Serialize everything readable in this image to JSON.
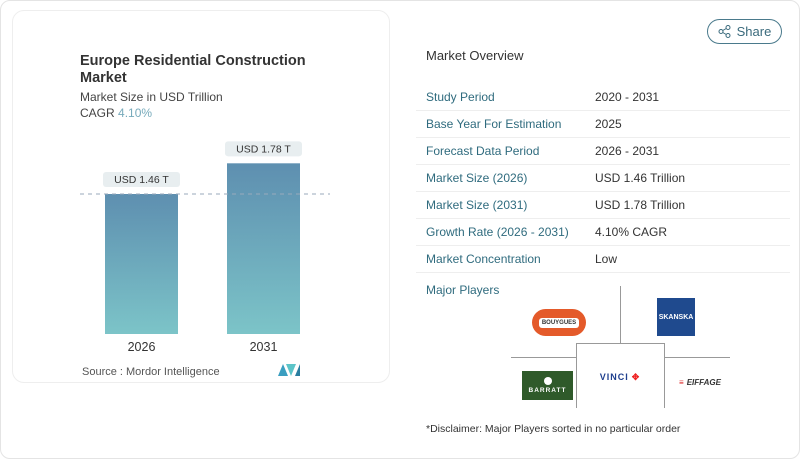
{
  "share_label": "Share",
  "chart_data": {
    "type": "bar",
    "title": "Europe Residential Construction Market",
    "subtitle": "Market Size in USD Trillion",
    "cagr_label": "CAGR",
    "cagr_value": "4.10%",
    "categories": [
      "2026",
      "2031"
    ],
    "values": [
      1.46,
      1.78
    ],
    "data_labels": [
      "USD 1.46 T",
      "USD 1.78 T"
    ],
    "reference_line": 1.46,
    "colors": {
      "top": "#5e8fb0",
      "bottom": "#7cc4c8"
    },
    "source": "Source :  Mordor Intelligence"
  },
  "overview": {
    "title": "Market Overview",
    "rows": [
      {
        "label": "Study Period",
        "value": "2020 - 2031"
      },
      {
        "label": "Base Year For Estimation",
        "value": "2025"
      },
      {
        "label": "Forecast Data Period",
        "value": "2026 - 2031"
      },
      {
        "label": "Market Size (2026)",
        "value": "USD 1.46 Trillion"
      },
      {
        "label": "Market Size (2031)",
        "value": "USD 1.78 Trillion"
      },
      {
        "label": "Growth Rate (2026 - 2031)",
        "value": "4.10% CAGR"
      },
      {
        "label": "Market Concentration",
        "value": "Low"
      }
    ],
    "major_players_label": "Major Players",
    "players": [
      "BOUYGUES",
      "SKANSKA",
      "BARRATT",
      "VINCI",
      "EIFFAGE"
    ],
    "disclaimer": "*Disclaimer: Major Players sorted in no particular order"
  }
}
